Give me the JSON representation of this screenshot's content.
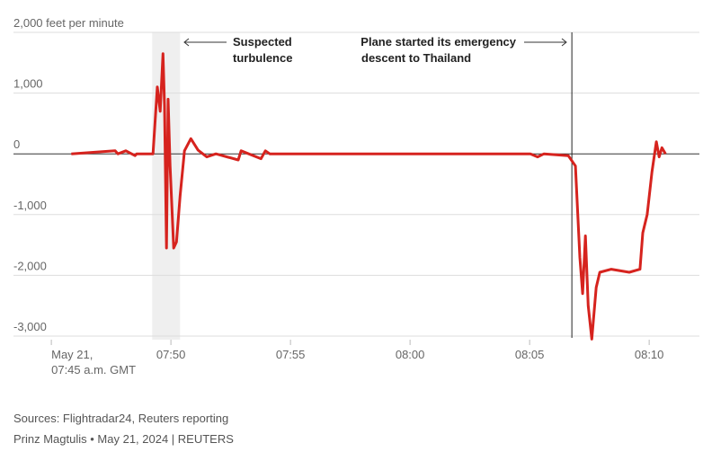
{
  "chart_data": {
    "type": "line",
    "color": "#d6231e",
    "x": [
      "07:45:50",
      "07:47:40",
      "07:47:47",
      "07:48:07",
      "07:48:30",
      "07:48:34",
      "07:49:15",
      "07:49:26",
      "07:49:33",
      "07:49:40",
      "07:49:44",
      "07:49:49",
      "07:49:53",
      "07:49:58",
      "07:50:07",
      "07:50:14",
      "07:50:23",
      "07:50:34",
      "07:50:50",
      "07:51:08",
      "07:51:30",
      "07:51:53",
      "07:52:49",
      "07:52:56",
      "07:53:46",
      "07:53:57",
      "07:54:08",
      "08:05:02",
      "08:05:20",
      "08:05:36",
      "08:06:37",
      "08:06:55",
      "08:07:06",
      "08:07:13",
      "08:07:20",
      "08:07:27",
      "08:07:36",
      "08:07:47",
      "08:07:56",
      "08:08:25",
      "08:09:10",
      "08:09:37",
      "08:09:44",
      "08:09:55",
      "08:10:07",
      "08:10:18",
      "08:10:25",
      "08:10:32",
      "08:10:41"
    ],
    "values": [
      0,
      50,
      0,
      50,
      -30,
      0,
      0,
      1100,
      700,
      1650,
      800,
      -1550,
      900,
      -200,
      -1550,
      -1450,
      -700,
      50,
      250,
      60,
      -50,
      0,
      -100,
      50,
      -80,
      50,
      0,
      0,
      -50,
      0,
      -30,
      -200,
      -1700,
      -2300,
      -1350,
      -2500,
      -3050,
      -2200,
      -1950,
      -1900,
      -1950,
      -1900,
      -1300,
      -1000,
      -300,
      200,
      -50,
      100,
      0
    ],
    "xlim": [
      "07:43:25",
      "08:12:06"
    ],
    "xticks": [
      {
        "value": "07:45",
        "label": [
          "May 21,",
          "07:45 a.m. GMT"
        ]
      },
      "07:50",
      "07:55",
      "08:00",
      "08:05",
      "08:10"
    ],
    "ylim": [
      -3000,
      2000
    ],
    "yticks": [
      {
        "value": -3000,
        "label": "-3,000"
      },
      {
        "value": -2000,
        "label": "-2,000"
      },
      {
        "value": -1000,
        "label": "-1,000"
      },
      0,
      {
        "value": 1000,
        "label": "1,000"
      },
      {
        "value": 2000,
        "label": "2,000 feet per minute"
      }
    ],
    "grid": true,
    "highlight": [
      "07:49:13",
      "07:50:23"
    ],
    "vline": "08:06:46",
    "annotations": [
      {
        "lines": [
          "Suspected",
          "turbulence"
        ]
      },
      {
        "lines": [
          "Plane started its emergency",
          "descent to Thailand"
        ]
      }
    ],
    "sources": "Sources: Flightradar24, Reuters reporting",
    "byline": "Prinz Magtulis • May 21, 2024 | REUTERS"
  }
}
